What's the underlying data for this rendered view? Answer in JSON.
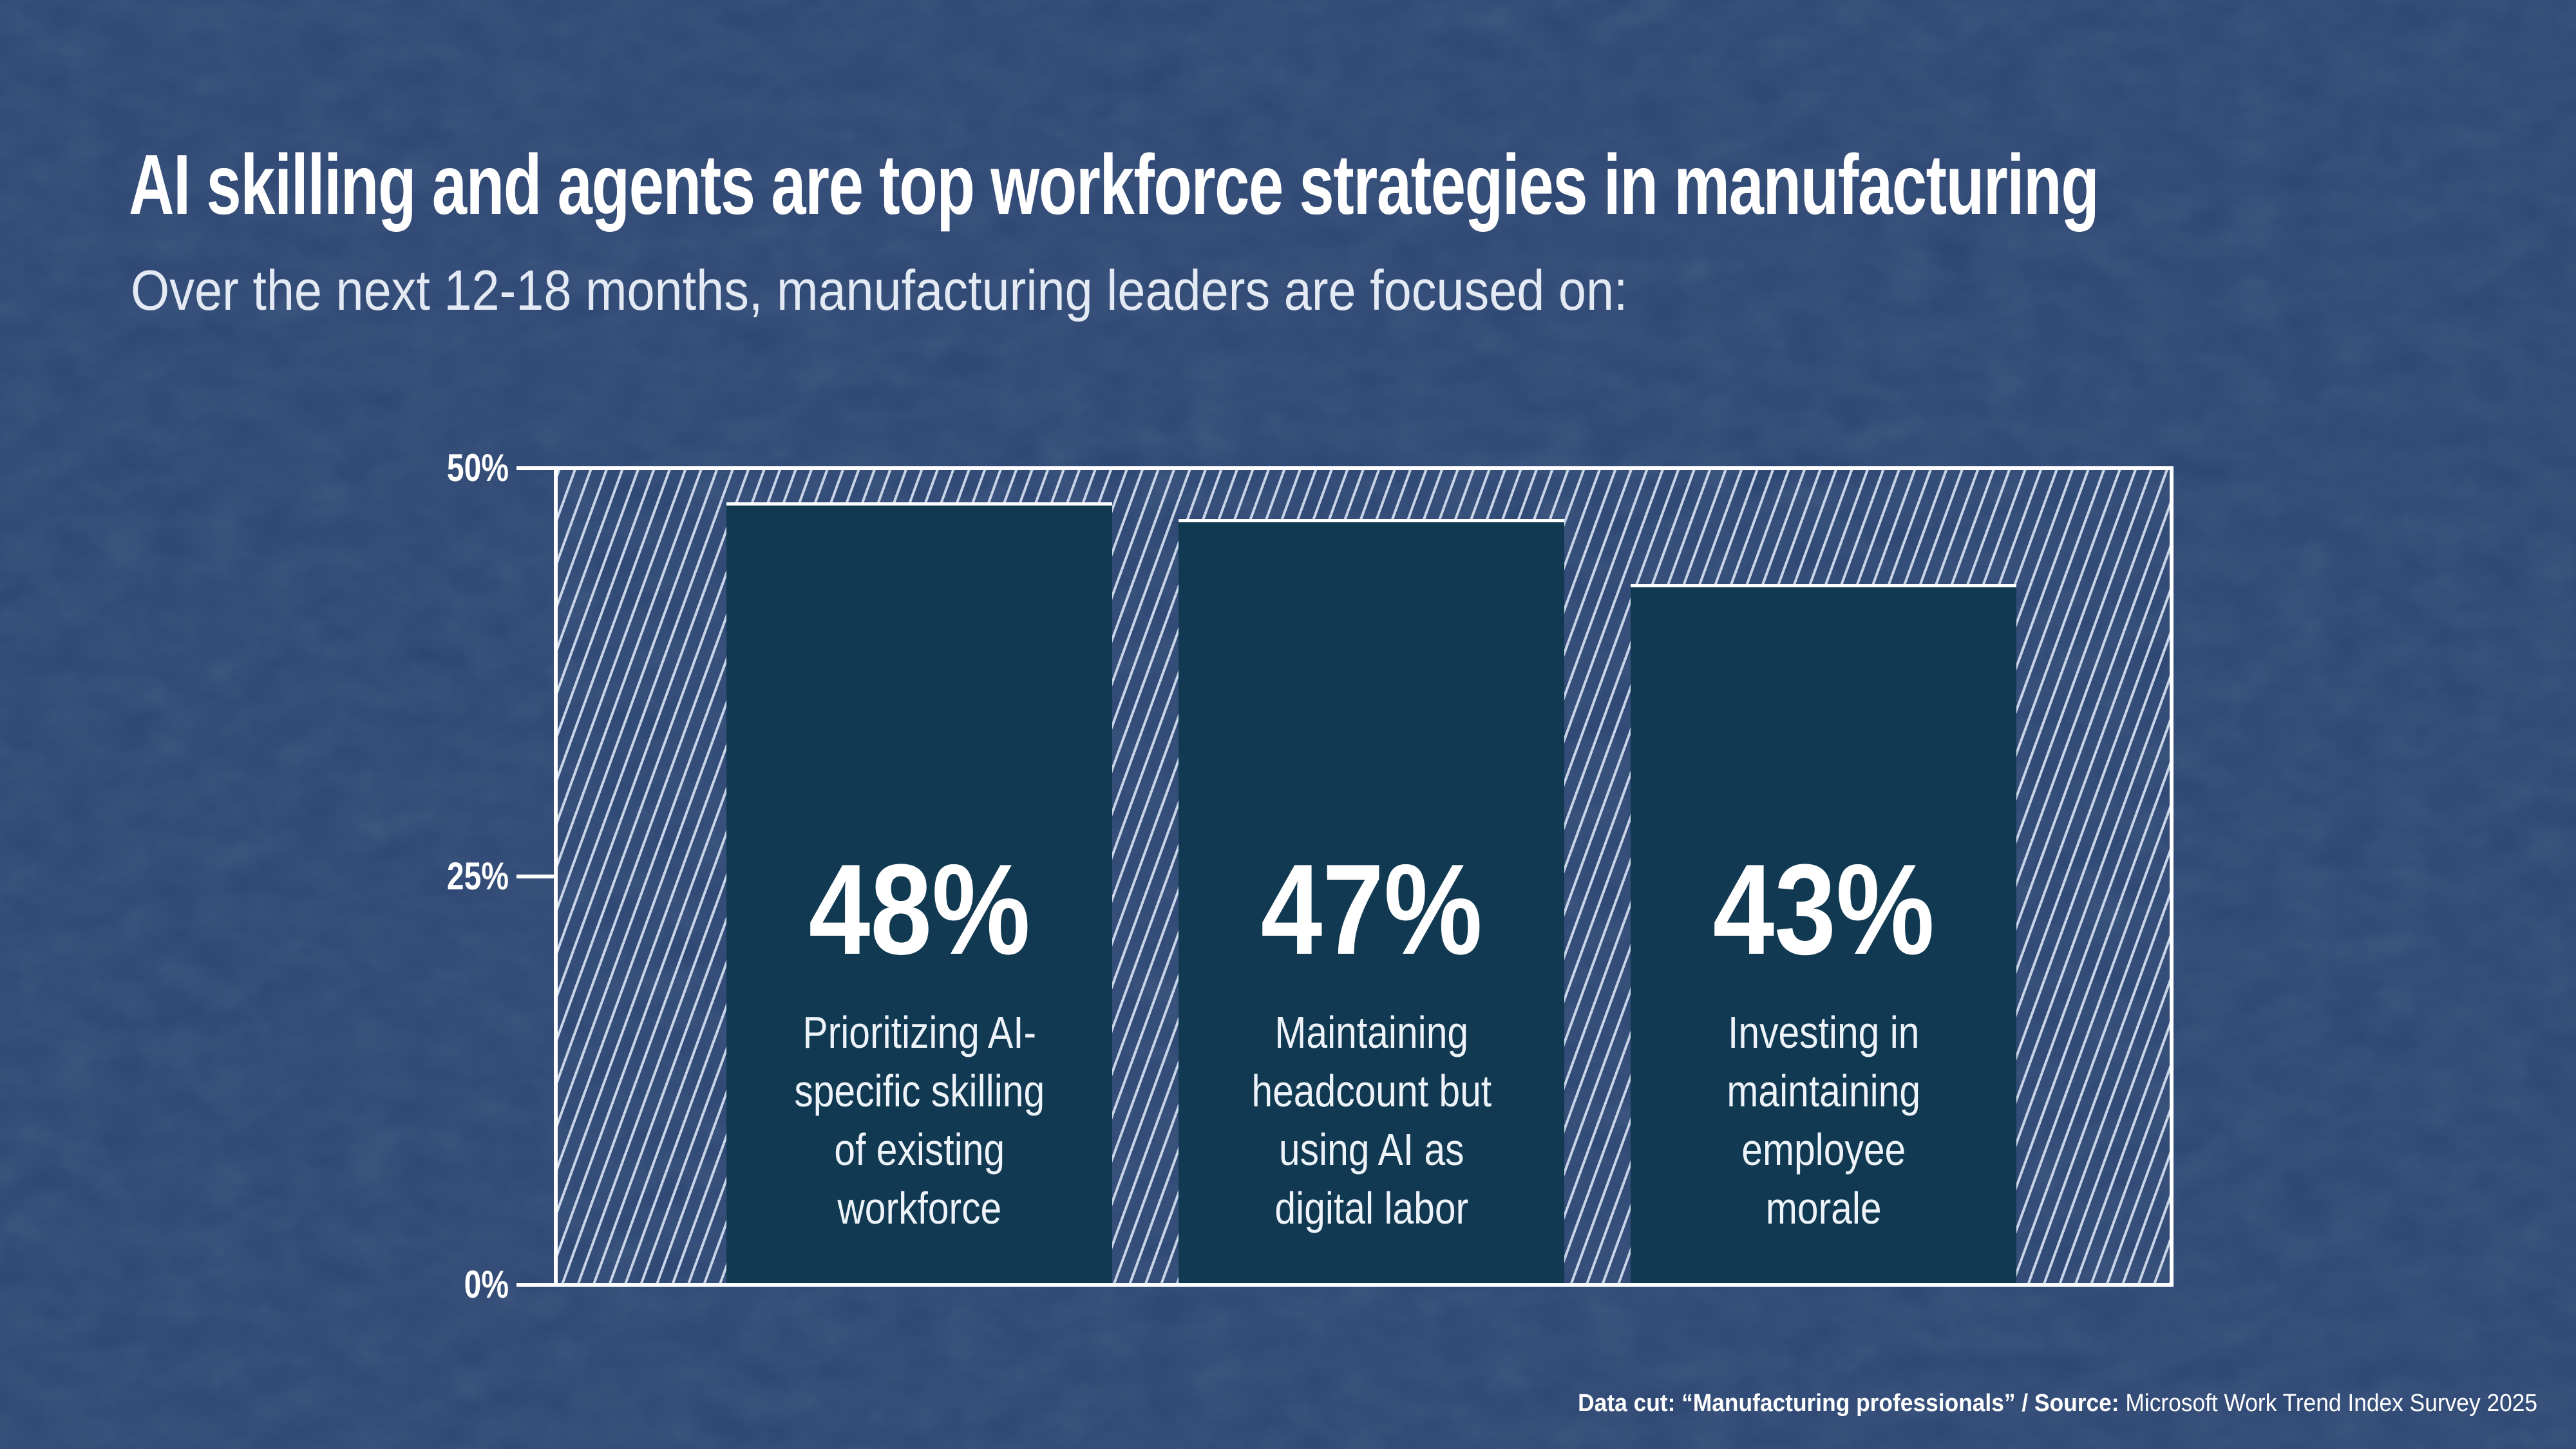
{
  "page": {
    "title": "AI skilling and agents are top workforce strategies in manufacturing",
    "subtitle": "Over the next 12-18 months, manufacturing leaders are focused on:",
    "footer": {
      "bold": "Data cut: “Manufacturing professionals” / Source: ",
      "regular": "Microsoft Work Trend Index Survey 2025"
    }
  },
  "colors": {
    "background": "#2d4672",
    "bar_fill": "#113a52",
    "hatch_line": "#c9d3e7",
    "axis_line": "#ffffff",
    "title_text": "#ffffff",
    "subtitle_text": "#e4eaf3",
    "description_text": "#eef3f9",
    "footer_text": "#ffffff"
  },
  "chart_data": {
    "type": "bar",
    "title": "AI skilling and agents are top workforce strategies in manufacturing",
    "subtitle": "Over the next 12-18 months, manufacturing leaders are focused on:",
    "categories": [
      "Prioritizing AI-specific skilling of existing workforce",
      "Maintaining headcount but using AI as digital labor",
      "Investing in maintaining employee morale"
    ],
    "values": [
      48,
      47,
      43
    ],
    "bars": [
      {
        "value": 48,
        "label": "48%",
        "description_lines": "Prioritizing AI-\nspecific skilling\nof existing\nworkforce"
      },
      {
        "value": 47,
        "label": "47%",
        "description_lines": "Maintaining\nheadcount but\nusing AI as\ndigital labor"
      },
      {
        "value": 43,
        "label": "43%",
        "description_lines": "Investing in\nmaintaining\nemployee\nmorale"
      }
    ],
    "xlabel": "",
    "ylabel": "",
    "ylim": [
      0,
      50
    ],
    "yticks": [
      "50%",
      "25%",
      "0%"
    ],
    "grid": false,
    "legend": false,
    "layout_hints": {
      "plot_area_hatched": true,
      "bar_top_border": true,
      "value_labels_inside_bars": true
    }
  }
}
